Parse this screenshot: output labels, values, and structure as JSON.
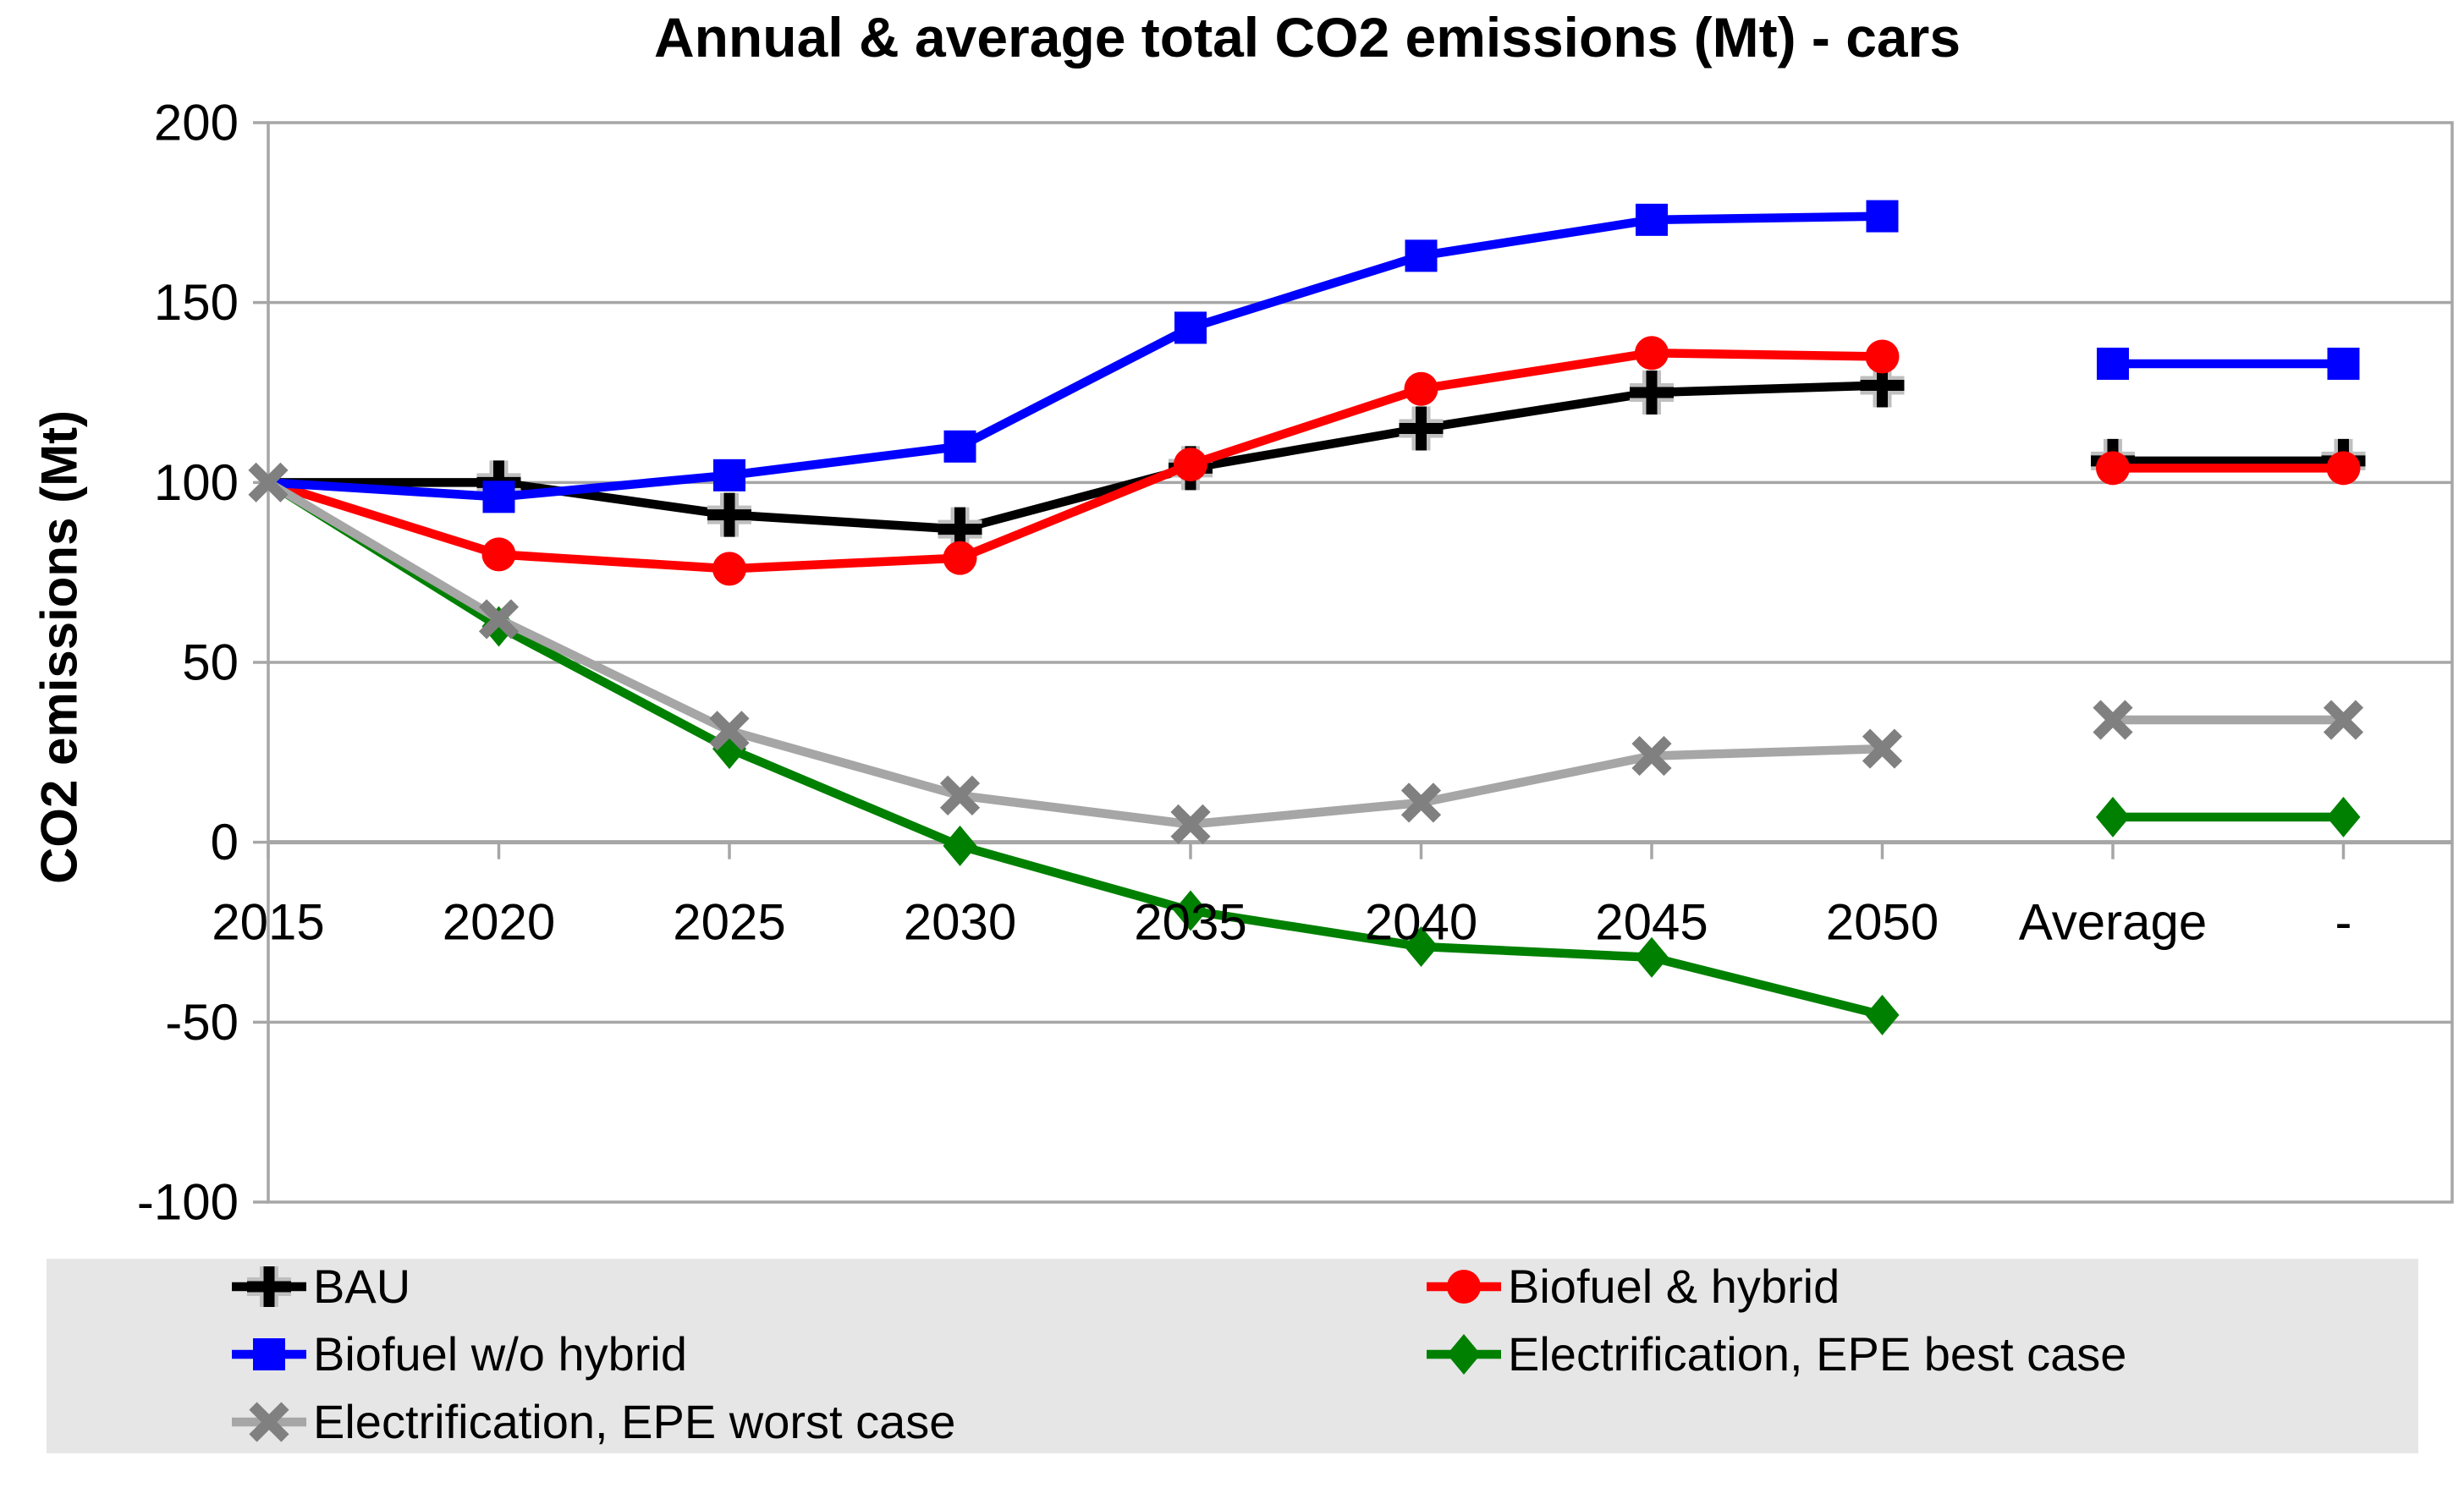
{
  "chart_data": {
    "type": "line",
    "title": "Annual & average total CO2 emissions (Mt) - cars",
    "ylabel": "CO2 emissions (Mt)",
    "xlabel": "",
    "categories": [
      "2015",
      "2020",
      "2025",
      "2030",
      "2035",
      "2040",
      "2045",
      "2050",
      "Average",
      "-"
    ],
    "ylim": [
      -100,
      200
    ],
    "yticks": [
      200,
      150,
      100,
      50,
      0,
      -50,
      -100
    ],
    "grid": true,
    "legend_position": "bottom",
    "gridline_color": "#A6A6A6",
    "legend_bg": "#E6E6E6",
    "series": [
      {
        "name": "BAU",
        "color": "#000000",
        "marker": "plus",
        "marker_color": "#000000",
        "values": [
          100,
          100,
          91,
          87,
          104,
          115,
          125,
          127
        ],
        "average": 106
      },
      {
        "name": "Biofuel & hybrid",
        "color": "#FF0000",
        "marker": "circle",
        "marker_color": "#FF0000",
        "values": [
          100,
          80,
          76,
          79,
          105,
          126,
          136,
          135
        ],
        "average": 104
      },
      {
        "name": "Biofuel w/o hybrid",
        "color": "#0000FF",
        "marker": "square",
        "marker_color": "#0000FF",
        "values": [
          100,
          96,
          102,
          110,
          143,
          163,
          173,
          174
        ],
        "average": 133
      },
      {
        "name": "Electrification, EPE best case",
        "color": "#008000",
        "marker": "diamond",
        "marker_color": "#008000",
        "values": [
          100,
          60,
          26,
          -1,
          -19,
          -29,
          -32,
          -48
        ],
        "average": 7
      },
      {
        "name": "Electrification, EPE worst case",
        "color": "#A6A6A6",
        "marker": "x",
        "marker_color": "#808080",
        "values": [
          100,
          62,
          31,
          13,
          5,
          11,
          24,
          26
        ],
        "average": 34
      }
    ],
    "legend_layout": {
      "columns": [
        [
          0,
          2,
          4
        ],
        [
          1,
          3
        ]
      ]
    }
  }
}
